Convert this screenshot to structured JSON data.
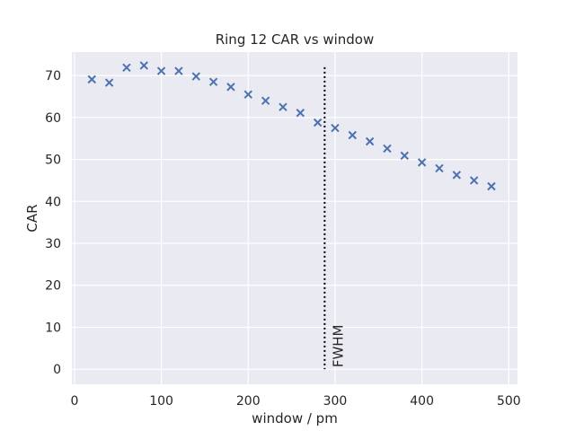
{
  "chart_data": {
    "type": "scatter",
    "title": "Ring 12 CAR vs window",
    "xlabel": "window / pm",
    "ylabel": "CAR",
    "xlim": [
      -3,
      510
    ],
    "ylim": [
      -3.6,
      75.6
    ],
    "xticks": [
      0,
      100,
      200,
      300,
      400,
      500
    ],
    "yticks": [
      0,
      10,
      20,
      30,
      40,
      50,
      60,
      70
    ],
    "grid": true,
    "marker": "x",
    "series": [
      {
        "color": "#4c72b0",
        "points": [
          {
            "x": 20,
            "y": 69.1
          },
          {
            "x": 40,
            "y": 68.3
          },
          {
            "x": 60,
            "y": 71.9
          },
          {
            "x": 80,
            "y": 72.4
          },
          {
            "x": 100,
            "y": 71.1
          },
          {
            "x": 120,
            "y": 71.1
          },
          {
            "x": 140,
            "y": 69.8
          },
          {
            "x": 160,
            "y": 68.5
          },
          {
            "x": 180,
            "y": 67.3
          },
          {
            "x": 200,
            "y": 65.5
          },
          {
            "x": 220,
            "y": 64.0
          },
          {
            "x": 240,
            "y": 62.5
          },
          {
            "x": 260,
            "y": 61.1
          },
          {
            "x": 280,
            "y": 58.8
          },
          {
            "x": 300,
            "y": 57.5
          },
          {
            "x": 320,
            "y": 55.8
          },
          {
            "x": 340,
            "y": 54.3
          },
          {
            "x": 360,
            "y": 52.6
          },
          {
            "x": 380,
            "y": 50.9
          },
          {
            "x": 400,
            "y": 49.3
          },
          {
            "x": 420,
            "y": 47.9
          },
          {
            "x": 440,
            "y": 46.3
          },
          {
            "x": 460,
            "y": 45.0
          },
          {
            "x": 480,
            "y": 43.6
          }
        ]
      }
    ],
    "annotations": [
      {
        "type": "vline",
        "x": 288,
        "y_from": 0,
        "y_to": 72,
        "style": "dotted",
        "color": "#000000",
        "text": "FWHM"
      }
    ]
  }
}
